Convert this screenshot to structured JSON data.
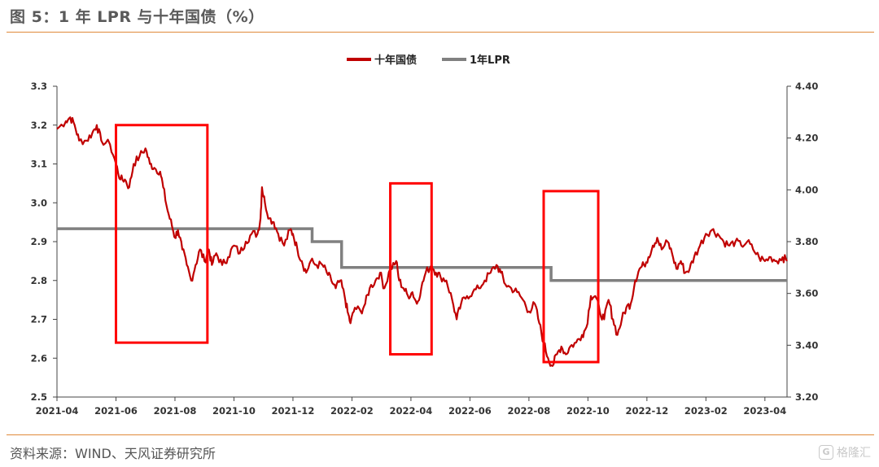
{
  "header": {
    "title": "图 5：1 年 LPR 与十年国债（%）"
  },
  "footer": {
    "source": "资料来源：WIND、天风证券研究所"
  },
  "watermark": {
    "icon": "G",
    "text": "格隆汇"
  },
  "colors": {
    "bond": "#c00000",
    "lpr": "#808080",
    "highlight": "#ff0000",
    "rule": "#e08a3a"
  },
  "chart_data": {
    "type": "line",
    "title": "1 年 LPR 与十年国债（%）",
    "legend": [
      "十年国债",
      "1年LPR"
    ],
    "legend_position": "top-center",
    "x_ticks": [
      "2021-04",
      "2021-06",
      "2021-08",
      "2021-10",
      "2021-12",
      "2022-02",
      "2022-04",
      "2022-06",
      "2022-08",
      "2022-10",
      "2022-12",
      "2023-02",
      "2023-04"
    ],
    "y_left": {
      "range": [
        2.5,
        3.3
      ],
      "ticks": [
        "2.5",
        "2.6",
        "2.7",
        "2.8",
        "2.9",
        "3.0",
        "3.1",
        "3.2",
        "3.3"
      ]
    },
    "y_right": {
      "range": [
        3.2,
        4.4
      ],
      "ticks": [
        "3.20",
        "3.40",
        "3.60",
        "3.80",
        "4.00",
        "4.20",
        "4.40"
      ]
    },
    "series": [
      {
        "name": "十年国债",
        "axis": "left",
        "points": [
          [
            0.0,
            3.19
          ],
          [
            0.3,
            3.21
          ],
          [
            0.45,
            3.22
          ],
          [
            0.6,
            3.2
          ],
          [
            0.75,
            3.16
          ],
          [
            1.0,
            3.16
          ],
          [
            1.2,
            3.18
          ],
          [
            1.35,
            3.2
          ],
          [
            1.5,
            3.16
          ],
          [
            1.8,
            3.15
          ],
          [
            2.0,
            3.1
          ],
          [
            2.15,
            3.06
          ],
          [
            2.3,
            3.06
          ],
          [
            2.45,
            3.04
          ],
          [
            2.6,
            3.1
          ],
          [
            2.8,
            3.12
          ],
          [
            3.0,
            3.14
          ],
          [
            3.15,
            3.1
          ],
          [
            3.3,
            3.09
          ],
          [
            3.5,
            3.08
          ],
          [
            3.6,
            3.04
          ],
          [
            3.75,
            2.98
          ],
          [
            3.9,
            2.94
          ],
          [
            4.0,
            2.91
          ],
          [
            4.1,
            2.93
          ],
          [
            4.25,
            2.88
          ],
          [
            4.4,
            2.84
          ],
          [
            4.55,
            2.8
          ],
          [
            4.7,
            2.84
          ],
          [
            4.85,
            2.88
          ],
          [
            5.0,
            2.85
          ],
          [
            5.15,
            2.88
          ],
          [
            5.25,
            2.84
          ],
          [
            5.4,
            2.87
          ],
          [
            5.6,
            2.84
          ],
          [
            5.8,
            2.86
          ],
          [
            6.0,
            2.89
          ],
          [
            6.2,
            2.87
          ],
          [
            6.4,
            2.9
          ],
          [
            6.6,
            2.92
          ],
          [
            6.8,
            2.92
          ],
          [
            6.9,
            2.96
          ],
          [
            6.95,
            3.04
          ],
          [
            7.05,
            3.0
          ],
          [
            7.2,
            2.96
          ],
          [
            7.35,
            2.95
          ],
          [
            7.5,
            2.92
          ],
          [
            7.7,
            2.89
          ],
          [
            7.9,
            2.93
          ],
          [
            8.0,
            2.92
          ],
          [
            8.15,
            2.88
          ],
          [
            8.3,
            2.85
          ],
          [
            8.45,
            2.82
          ],
          [
            8.6,
            2.85
          ],
          [
            8.8,
            2.84
          ],
          [
            9.0,
            2.84
          ],
          [
            9.15,
            2.82
          ],
          [
            9.3,
            2.8
          ],
          [
            9.45,
            2.78
          ],
          [
            9.6,
            2.8
          ],
          [
            9.75,
            2.76
          ],
          [
            9.85,
            2.72
          ],
          [
            9.95,
            2.69
          ],
          [
            10.1,
            2.73
          ],
          [
            10.3,
            2.72
          ],
          [
            10.45,
            2.74
          ],
          [
            10.6,
            2.78
          ],
          [
            10.8,
            2.8
          ],
          [
            10.95,
            2.82
          ],
          [
            11.1,
            2.78
          ],
          [
            11.3,
            2.83
          ],
          [
            11.5,
            2.85
          ],
          [
            11.6,
            2.8
          ],
          [
            11.75,
            2.78
          ],
          [
            11.9,
            2.76
          ],
          [
            12.05,
            2.77
          ],
          [
            12.2,
            2.74
          ],
          [
            12.35,
            2.78
          ],
          [
            12.5,
            2.82
          ],
          [
            12.7,
            2.84
          ],
          [
            12.85,
            2.82
          ],
          [
            13.0,
            2.81
          ],
          [
            13.2,
            2.8
          ],
          [
            13.4,
            2.75
          ],
          [
            13.55,
            2.7
          ],
          [
            13.7,
            2.74
          ],
          [
            13.9,
            2.76
          ],
          [
            14.1,
            2.77
          ],
          [
            14.3,
            2.78
          ],
          [
            14.5,
            2.8
          ],
          [
            14.7,
            2.82
          ],
          [
            14.9,
            2.84
          ],
          [
            15.05,
            2.82
          ],
          [
            15.2,
            2.79
          ],
          [
            15.4,
            2.78
          ],
          [
            15.6,
            2.77
          ],
          [
            15.8,
            2.75
          ],
          [
            16.0,
            2.72
          ],
          [
            16.2,
            2.74
          ],
          [
            16.35,
            2.69
          ],
          [
            16.5,
            2.64
          ],
          [
            16.65,
            2.6
          ],
          [
            16.8,
            2.58
          ],
          [
            16.95,
            2.61
          ],
          [
            17.1,
            2.63
          ],
          [
            17.25,
            2.61
          ],
          [
            17.4,
            2.63
          ],
          [
            17.6,
            2.64
          ],
          [
            17.8,
            2.66
          ],
          [
            17.95,
            2.68
          ],
          [
            18.1,
            2.76
          ],
          [
            18.25,
            2.76
          ],
          [
            18.4,
            2.72
          ],
          [
            18.55,
            2.7
          ],
          [
            18.7,
            2.75
          ],
          [
            18.85,
            2.7
          ],
          [
            19.0,
            2.66
          ],
          [
            19.15,
            2.7
          ],
          [
            19.3,
            2.73
          ],
          [
            19.45,
            2.74
          ],
          [
            19.6,
            2.8
          ],
          [
            19.75,
            2.83
          ],
          [
            19.9,
            2.84
          ],
          [
            20.05,
            2.86
          ],
          [
            20.2,
            2.89
          ],
          [
            20.35,
            2.91
          ],
          [
            20.5,
            2.88
          ],
          [
            20.7,
            2.9
          ],
          [
            20.85,
            2.87
          ],
          [
            21.0,
            2.83
          ],
          [
            21.15,
            2.85
          ],
          [
            21.3,
            2.82
          ],
          [
            21.45,
            2.83
          ],
          [
            21.6,
            2.86
          ],
          [
            21.8,
            2.89
          ],
          [
            22.0,
            2.92
          ],
          [
            22.2,
            2.93
          ],
          [
            22.4,
            2.92
          ],
          [
            22.6,
            2.9
          ],
          [
            22.8,
            2.89
          ],
          [
            23.0,
            2.9
          ],
          [
            23.2,
            2.89
          ],
          [
            23.4,
            2.9
          ],
          [
            23.6,
            2.88
          ],
          [
            23.8,
            2.86
          ],
          [
            24.0,
            2.85
          ],
          [
            24.2,
            2.86
          ],
          [
            24.4,
            2.85
          ],
          [
            24.6,
            2.86
          ],
          [
            24.75,
            2.85
          ]
        ]
      },
      {
        "name": "1年LPR",
        "axis": "right",
        "points": [
          [
            0.0,
            3.85
          ],
          [
            8.65,
            3.85
          ],
          [
            8.65,
            3.8
          ],
          [
            9.65,
            3.8
          ],
          [
            9.65,
            3.7
          ],
          [
            16.75,
            3.7
          ],
          [
            16.75,
            3.65
          ],
          [
            24.75,
            3.65
          ]
        ]
      }
    ],
    "x_unit": "months since 2021-04",
    "highlight_boxes": [
      {
        "x_from": 2.0,
        "x_to": 5.1,
        "y_from": 2.64,
        "y_to": 3.2
      },
      {
        "x_from": 11.3,
        "x_to": 12.7,
        "y_from": 2.61,
        "y_to": 3.05
      },
      {
        "x_from": 16.5,
        "x_to": 18.35,
        "y_from": 2.59,
        "y_to": 3.03
      }
    ]
  }
}
